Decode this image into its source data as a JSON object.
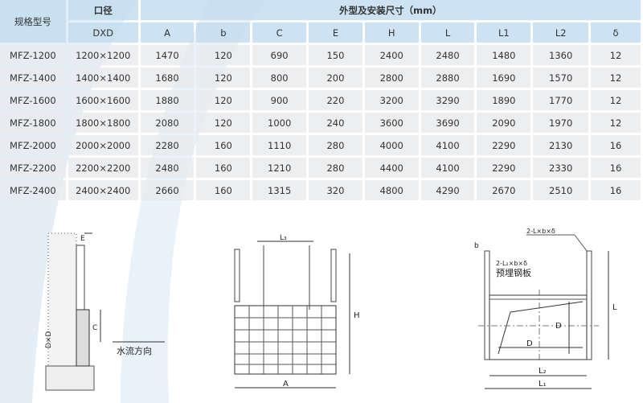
{
  "table": {
    "header_model": "规格型号",
    "header_bore": "口径",
    "header_dims": "外型及安装尺寸（mm）",
    "columns": [
      "DXD",
      "A",
      "b",
      "C",
      "E",
      "H",
      "L",
      "L1",
      "L2",
      "δ"
    ],
    "rows": [
      [
        "MFZ-1200",
        "1200×1200",
        "1470",
        "120",
        "690",
        "150",
        "2400",
        "2480",
        "1480",
        "1360",
        "12"
      ],
      [
        "MFZ-1400",
        "1400×1400",
        "1680",
        "120",
        "800",
        "200",
        "2800",
        "2880",
        "1690",
        "1570",
        "12"
      ],
      [
        "MFZ-1600",
        "1600×1600",
        "1880",
        "120",
        "900",
        "220",
        "3200",
        "3290",
        "1890",
        "1770",
        "12"
      ],
      [
        "MFZ-1800",
        "1800×1800",
        "2080",
        "120",
        "1000",
        "240",
        "3600",
        "3690",
        "2090",
        "1970",
        "12"
      ],
      [
        "MFZ-2000",
        "2000×2000",
        "2280",
        "160",
        "1110",
        "280",
        "4000",
        "4100",
        "2290",
        "2130",
        "16"
      ],
      [
        "MFZ-2200",
        "2200×2200",
        "2480",
        "160",
        "1210",
        "280",
        "4400",
        "4100",
        "2290",
        "2330",
        "16"
      ],
      [
        "MFZ-2400",
        "2400×2400",
        "2660",
        "160",
        "1315",
        "320",
        "4800",
        "4290",
        "2670",
        "2510",
        "16"
      ]
    ]
  },
  "drawings": {
    "side": {
      "e": "E",
      "c": "C",
      "dxd": "D×D",
      "flow": "水流方向"
    },
    "front": {
      "l3": "L₃",
      "h": "H",
      "a": "A"
    },
    "install": {
      "b": "b",
      "angle": "2-L×b×δ",
      "angle2": "2-L₂×b×δ",
      "plate": "预埋钢板",
      "d1": "D",
      "d2": "D",
      "l": "L",
      "l2": "L₂",
      "l1": "L₁"
    }
  }
}
